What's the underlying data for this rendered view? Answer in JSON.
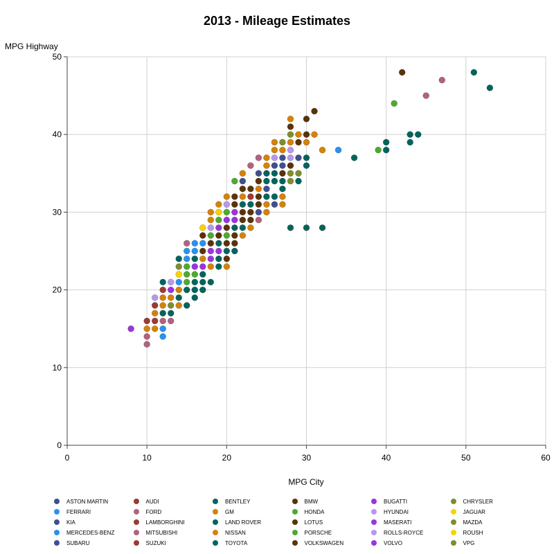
{
  "chart_data": {
    "type": "scatter",
    "title": "2013 - Mileage Estimates",
    "xlabel": "MPG City",
    "ylabel": "MPG Highway",
    "xlim": [
      0,
      60
    ],
    "ylim": [
      0,
      50
    ],
    "xticks": [
      0,
      10,
      20,
      30,
      40,
      50,
      60
    ],
    "yticks": [
      0,
      10,
      20,
      30,
      40,
      50
    ],
    "grid": true,
    "legend_position": "bottom",
    "legend": [
      {
        "name": "ASTON MARTIN",
        "color": "#3f4f8f"
      },
      {
        "name": "AUDI",
        "color": "#9c3a33"
      },
      {
        "name": "BENTLEY",
        "color": "#01655e"
      },
      {
        "name": "BMW",
        "color": "#5b3309"
      },
      {
        "name": "BUGATTI",
        "color": "#9a35db"
      },
      {
        "name": "CHRYSLER",
        "color": "#7e8e2e"
      },
      {
        "name": "FERRARI",
        "color": "#2892ee"
      },
      {
        "name": "FORD",
        "color": "#b3627e"
      },
      {
        "name": "GM",
        "color": "#d5820a"
      },
      {
        "name": "HONDA",
        "color": "#4cab2f"
      },
      {
        "name": "HYUNDAI",
        "color": "#b699ec"
      },
      {
        "name": "JAGUAR",
        "color": "#f8d300"
      },
      {
        "name": "KIA",
        "color": "#3f4f8f"
      },
      {
        "name": "LAMBORGHINI",
        "color": "#9c3a33"
      },
      {
        "name": "LAND ROVER",
        "color": "#01655e"
      },
      {
        "name": "LOTUS",
        "color": "#5b3309"
      },
      {
        "name": "MASERATI",
        "color": "#9a35db"
      },
      {
        "name": "MAZDA",
        "color": "#7e8e2e"
      },
      {
        "name": "MERCEDES-BENZ",
        "color": "#2892ee"
      },
      {
        "name": "MITSUBISHI",
        "color": "#b3627e"
      },
      {
        "name": "NISSAN",
        "color": "#d5820a"
      },
      {
        "name": "PORSCHE",
        "color": "#4cab2f"
      },
      {
        "name": "ROLLS-ROYCE",
        "color": "#b699ec"
      },
      {
        "name": "ROUSH",
        "color": "#f8d300"
      },
      {
        "name": "SUBARU",
        "color": "#3f4f8f"
      },
      {
        "name": "SUZUKI",
        "color": "#9c3a33"
      },
      {
        "name": "TOYOTA",
        "color": "#01655e"
      },
      {
        "name": "VOLKSWAGEN",
        "color": "#5b3309"
      },
      {
        "name": "VOLVO",
        "color": "#9a35db"
      },
      {
        "name": "VPG",
        "color": "#7e8e2e"
      }
    ],
    "points": [
      {
        "x": 8,
        "y": 15,
        "c": "#9a35db"
      },
      {
        "x": 10,
        "y": 13,
        "c": "#b3627e"
      },
      {
        "x": 10,
        "y": 14,
        "c": "#b3627e"
      },
      {
        "x": 10,
        "y": 15,
        "c": "#d5820a"
      },
      {
        "x": 10,
        "y": 16,
        "c": "#9c3a33"
      },
      {
        "x": 11,
        "y": 15,
        "c": "#d5820a"
      },
      {
        "x": 11,
        "y": 16,
        "c": "#9c3a33"
      },
      {
        "x": 11,
        "y": 17,
        "c": "#d5820a"
      },
      {
        "x": 11,
        "y": 18,
        "c": "#9c3a33"
      },
      {
        "x": 11,
        "y": 19,
        "c": "#b699ec"
      },
      {
        "x": 12,
        "y": 14,
        "c": "#2892ee"
      },
      {
        "x": 12,
        "y": 15,
        "c": "#2892ee"
      },
      {
        "x": 12,
        "y": 16,
        "c": "#b3627e"
      },
      {
        "x": 12,
        "y": 17,
        "c": "#01655e"
      },
      {
        "x": 12,
        "y": 18,
        "c": "#d5820a"
      },
      {
        "x": 12,
        "y": 19,
        "c": "#d5820a"
      },
      {
        "x": 12,
        "y": 20,
        "c": "#9c3a33"
      },
      {
        "x": 12,
        "y": 21,
        "c": "#01655e"
      },
      {
        "x": 13,
        "y": 16,
        "c": "#b3627e"
      },
      {
        "x": 13,
        "y": 17,
        "c": "#01655e"
      },
      {
        "x": 13,
        "y": 18,
        "c": "#7e8e2e"
      },
      {
        "x": 13,
        "y": 19,
        "c": "#d5820a"
      },
      {
        "x": 13,
        "y": 20,
        "c": "#9a35db"
      },
      {
        "x": 13,
        "y": 21,
        "c": "#b699ec"
      },
      {
        "x": 14,
        "y": 18,
        "c": "#d5820a"
      },
      {
        "x": 14,
        "y": 19,
        "c": "#01655e"
      },
      {
        "x": 14,
        "y": 20,
        "c": "#d5820a"
      },
      {
        "x": 14,
        "y": 21,
        "c": "#2892ee"
      },
      {
        "x": 14,
        "y": 22,
        "c": "#f8d300"
      },
      {
        "x": 14,
        "y": 23,
        "c": "#7e8e2e"
      },
      {
        "x": 14,
        "y": 24,
        "c": "#01655e"
      },
      {
        "x": 15,
        "y": 18,
        "c": "#01655e"
      },
      {
        "x": 15,
        "y": 20,
        "c": "#01655e"
      },
      {
        "x": 15,
        "y": 21,
        "c": "#4cab2f"
      },
      {
        "x": 15,
        "y": 22,
        "c": "#4cab2f"
      },
      {
        "x": 15,
        "y": 23,
        "c": "#4cab2f"
      },
      {
        "x": 15,
        "y": 24,
        "c": "#2892ee"
      },
      {
        "x": 15,
        "y": 25,
        "c": "#2892ee"
      },
      {
        "x": 15,
        "y": 26,
        "c": "#b3627e"
      },
      {
        "x": 16,
        "y": 19,
        "c": "#01655e"
      },
      {
        "x": 16,
        "y": 20,
        "c": "#01655e"
      },
      {
        "x": 16,
        "y": 21,
        "c": "#01655e"
      },
      {
        "x": 16,
        "y": 22,
        "c": "#4cab2f"
      },
      {
        "x": 16,
        "y": 23,
        "c": "#9a35db"
      },
      {
        "x": 16,
        "y": 24,
        "c": "#01655e"
      },
      {
        "x": 16,
        "y": 25,
        "c": "#2892ee"
      },
      {
        "x": 16,
        "y": 26,
        "c": "#2892ee"
      },
      {
        "x": 17,
        "y": 20,
        "c": "#01655e"
      },
      {
        "x": 17,
        "y": 21,
        "c": "#01655e"
      },
      {
        "x": 17,
        "y": 22,
        "c": "#01655e"
      },
      {
        "x": 17,
        "y": 23,
        "c": "#9a35db"
      },
      {
        "x": 17,
        "y": 24,
        "c": "#d5820a"
      },
      {
        "x": 17,
        "y": 25,
        "c": "#5b3309"
      },
      {
        "x": 17,
        "y": 26,
        "c": "#2892ee"
      },
      {
        "x": 17,
        "y": 27,
        "c": "#5b3309"
      },
      {
        "x": 17,
        "y": 28,
        "c": "#f8d300"
      },
      {
        "x": 18,
        "y": 21,
        "c": "#01655e"
      },
      {
        "x": 18,
        "y": 23,
        "c": "#d5820a"
      },
      {
        "x": 18,
        "y": 24,
        "c": "#9a35db"
      },
      {
        "x": 18,
        "y": 25,
        "c": "#9a35db"
      },
      {
        "x": 18,
        "y": 26,
        "c": "#5b3309"
      },
      {
        "x": 18,
        "y": 27,
        "c": "#4cab2f"
      },
      {
        "x": 18,
        "y": 28,
        "c": "#b699ec"
      },
      {
        "x": 18,
        "y": 29,
        "c": "#d5820a"
      },
      {
        "x": 18,
        "y": 30,
        "c": "#d5820a"
      },
      {
        "x": 19,
        "y": 23,
        "c": "#01655e"
      },
      {
        "x": 19,
        "y": 24,
        "c": "#01655e"
      },
      {
        "x": 19,
        "y": 25,
        "c": "#9a35db"
      },
      {
        "x": 19,
        "y": 26,
        "c": "#01655e"
      },
      {
        "x": 19,
        "y": 27,
        "c": "#5b3309"
      },
      {
        "x": 19,
        "y": 28,
        "c": "#9a35db"
      },
      {
        "x": 19,
        "y": 29,
        "c": "#4cab2f"
      },
      {
        "x": 19,
        "y": 30,
        "c": "#f8d300"
      },
      {
        "x": 19,
        "y": 31,
        "c": "#d5820a"
      },
      {
        "x": 20,
        "y": 23,
        "c": "#d5820a"
      },
      {
        "x": 20,
        "y": 24,
        "c": "#5b3309"
      },
      {
        "x": 20,
        "y": 25,
        "c": "#01655e"
      },
      {
        "x": 20,
        "y": 26,
        "c": "#5b3309"
      },
      {
        "x": 20,
        "y": 27,
        "c": "#4cab2f"
      },
      {
        "x": 20,
        "y": 28,
        "c": "#5b3309"
      },
      {
        "x": 20,
        "y": 29,
        "c": "#9a35db"
      },
      {
        "x": 20,
        "y": 30,
        "c": "#4cab2f"
      },
      {
        "x": 20,
        "y": 31,
        "c": "#b699ec"
      },
      {
        "x": 20,
        "y": 32,
        "c": "#d5820a"
      },
      {
        "x": 21,
        "y": 25,
        "c": "#01655e"
      },
      {
        "x": 21,
        "y": 26,
        "c": "#5b3309"
      },
      {
        "x": 21,
        "y": 27,
        "c": "#5b3309"
      },
      {
        "x": 21,
        "y": 28,
        "c": "#01655e"
      },
      {
        "x": 21,
        "y": 29,
        "c": "#9a35db"
      },
      {
        "x": 21,
        "y": 30,
        "c": "#9a35db"
      },
      {
        "x": 21,
        "y": 31,
        "c": "#5b3309"
      },
      {
        "x": 21,
        "y": 32,
        "c": "#5b3309"
      },
      {
        "x": 21,
        "y": 34,
        "c": "#4cab2f"
      },
      {
        "x": 22,
        "y": 27,
        "c": "#d5820a"
      },
      {
        "x": 22,
        "y": 28,
        "c": "#01655e"
      },
      {
        "x": 22,
        "y": 29,
        "c": "#5b3309"
      },
      {
        "x": 22,
        "y": 30,
        "c": "#5b3309"
      },
      {
        "x": 22,
        "y": 31,
        "c": "#01655e"
      },
      {
        "x": 22,
        "y": 32,
        "c": "#d5820a"
      },
      {
        "x": 22,
        "y": 33,
        "c": "#5b3309"
      },
      {
        "x": 22,
        "y": 34,
        "c": "#3f4f8f"
      },
      {
        "x": 22,
        "y": 35,
        "c": "#d5820a"
      },
      {
        "x": 23,
        "y": 28,
        "c": "#d5820a"
      },
      {
        "x": 23,
        "y": 29,
        "c": "#5b3309"
      },
      {
        "x": 23,
        "y": 30,
        "c": "#5b3309"
      },
      {
        "x": 23,
        "y": 31,
        "c": "#01655e"
      },
      {
        "x": 23,
        "y": 32,
        "c": "#9c3a33"
      },
      {
        "x": 23,
        "y": 33,
        "c": "#5b3309"
      },
      {
        "x": 23,
        "y": 36,
        "c": "#b3627e"
      },
      {
        "x": 24,
        "y": 29,
        "c": "#b3627e"
      },
      {
        "x": 24,
        "y": 30,
        "c": "#3f4f8f"
      },
      {
        "x": 24,
        "y": 31,
        "c": "#5b3309"
      },
      {
        "x": 24,
        "y": 32,
        "c": "#5b3309"
      },
      {
        "x": 24,
        "y": 33,
        "c": "#d5820a"
      },
      {
        "x": 24,
        "y": 34,
        "c": "#5b3309"
      },
      {
        "x": 24,
        "y": 35,
        "c": "#3f4f8f"
      },
      {
        "x": 24,
        "y": 37,
        "c": "#b3627e"
      },
      {
        "x": 25,
        "y": 30,
        "c": "#d5820a"
      },
      {
        "x": 25,
        "y": 31,
        "c": "#d5820a"
      },
      {
        "x": 25,
        "y": 32,
        "c": "#01655e"
      },
      {
        "x": 25,
        "y": 33,
        "c": "#3f4f8f"
      },
      {
        "x": 25,
        "y": 34,
        "c": "#01655e"
      },
      {
        "x": 25,
        "y": 35,
        "c": "#01655e"
      },
      {
        "x": 25,
        "y": 36,
        "c": "#d5820a"
      },
      {
        "x": 25,
        "y": 37,
        "c": "#d5820a"
      },
      {
        "x": 26,
        "y": 31,
        "c": "#3f4f8f"
      },
      {
        "x": 26,
        "y": 32,
        "c": "#01655e"
      },
      {
        "x": 26,
        "y": 34,
        "c": "#01655e"
      },
      {
        "x": 26,
        "y": 35,
        "c": "#01655e"
      },
      {
        "x": 26,
        "y": 36,
        "c": "#3f4f8f"
      },
      {
        "x": 26,
        "y": 37,
        "c": "#b699ec"
      },
      {
        "x": 26,
        "y": 38,
        "c": "#d5820a"
      },
      {
        "x": 26,
        "y": 39,
        "c": "#d5820a"
      },
      {
        "x": 27,
        "y": 31,
        "c": "#d5820a"
      },
      {
        "x": 27,
        "y": 32,
        "c": "#d5820a"
      },
      {
        "x": 27,
        "y": 33,
        "c": "#01655e"
      },
      {
        "x": 27,
        "y": 34,
        "c": "#01655e"
      },
      {
        "x": 27,
        "y": 35,
        "c": "#5b3309"
      },
      {
        "x": 27,
        "y": 36,
        "c": "#3f4f8f"
      },
      {
        "x": 27,
        "y": 37,
        "c": "#3f4f8f"
      },
      {
        "x": 27,
        "y": 38,
        "c": "#d5820a"
      },
      {
        "x": 27,
        "y": 39,
        "c": "#7e8e2e"
      },
      {
        "x": 28,
        "y": 28,
        "c": "#01655e"
      },
      {
        "x": 28,
        "y": 34,
        "c": "#7e8e2e"
      },
      {
        "x": 28,
        "y": 35,
        "c": "#7e8e2e"
      },
      {
        "x": 28,
        "y": 36,
        "c": "#5b3309"
      },
      {
        "x": 28,
        "y": 37,
        "c": "#b699ec"
      },
      {
        "x": 28,
        "y": 38,
        "c": "#b699ec"
      },
      {
        "x": 28,
        "y": 39,
        "c": "#d5820a"
      },
      {
        "x": 28,
        "y": 40,
        "c": "#7e8e2e"
      },
      {
        "x": 28,
        "y": 41,
        "c": "#5b3309"
      },
      {
        "x": 28,
        "y": 42,
        "c": "#d5820a"
      },
      {
        "x": 29,
        "y": 34,
        "c": "#01655e"
      },
      {
        "x": 29,
        "y": 35,
        "c": "#7e8e2e"
      },
      {
        "x": 29,
        "y": 37,
        "c": "#3f4f8f"
      },
      {
        "x": 29,
        "y": 39,
        "c": "#5b3309"
      },
      {
        "x": 29,
        "y": 40,
        "c": "#d5820a"
      },
      {
        "x": 30,
        "y": 28,
        "c": "#01655e"
      },
      {
        "x": 30,
        "y": 36,
        "c": "#01655e"
      },
      {
        "x": 30,
        "y": 37,
        "c": "#01655e"
      },
      {
        "x": 30,
        "y": 39,
        "c": "#d5820a"
      },
      {
        "x": 30,
        "y": 40,
        "c": "#5b3309"
      },
      {
        "x": 30,
        "y": 42,
        "c": "#5b3309"
      },
      {
        "x": 31,
        "y": 40,
        "c": "#d5820a"
      },
      {
        "x": 31,
        "y": 43,
        "c": "#5b3309"
      },
      {
        "x": 32,
        "y": 28,
        "c": "#01655e"
      },
      {
        "x": 32,
        "y": 38,
        "c": "#d5820a"
      },
      {
        "x": 34,
        "y": 38,
        "c": "#2892ee"
      },
      {
        "x": 36,
        "y": 37,
        "c": "#01655e"
      },
      {
        "x": 39,
        "y": 38,
        "c": "#4cab2f"
      },
      {
        "x": 40,
        "y": 38,
        "c": "#01655e"
      },
      {
        "x": 40,
        "y": 39,
        "c": "#01655e"
      },
      {
        "x": 41,
        "y": 44,
        "c": "#4cab2f"
      },
      {
        "x": 42,
        "y": 48,
        "c": "#5b3309"
      },
      {
        "x": 43,
        "y": 39,
        "c": "#01655e"
      },
      {
        "x": 43,
        "y": 40,
        "c": "#01655e"
      },
      {
        "x": 44,
        "y": 40,
        "c": "#01655e"
      },
      {
        "x": 45,
        "y": 45,
        "c": "#b3627e"
      },
      {
        "x": 47,
        "y": 47,
        "c": "#b3627e"
      },
      {
        "x": 51,
        "y": 48,
        "c": "#01655e"
      },
      {
        "x": 53,
        "y": 46,
        "c": "#01655e"
      }
    ]
  }
}
